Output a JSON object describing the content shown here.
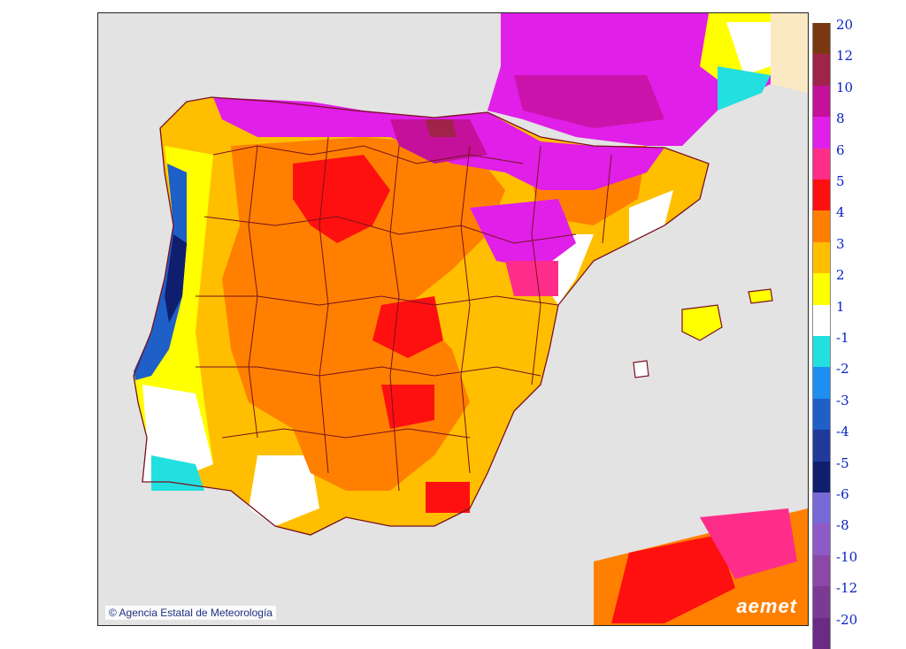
{
  "copyright": "© Agencia Estatal de Meteorología",
  "logo": "aemet",
  "legend": {
    "positive": [
      {
        "label": "20",
        "color": "#7a3810"
      },
      {
        "label": "12",
        "color": "#a0234a"
      },
      {
        "label": "10",
        "color": "#c4109a"
      },
      {
        "label": "8",
        "color": "#e01fe8"
      },
      {
        "label": "6",
        "color": "#ff2d8a"
      },
      {
        "label": "5",
        "color": "#ff1010"
      },
      {
        "label": "4",
        "color": "#ff8000"
      },
      {
        "label": "3",
        "color": "#ffbf00"
      },
      {
        "label": "2",
        "color": "#ffff00"
      },
      {
        "label": "1",
        "color": "#ffffff"
      }
    ],
    "negative": [
      {
        "label": "-1",
        "color": "#22e0e0"
      },
      {
        "label": "-2",
        "color": "#1e8ef0"
      },
      {
        "label": "-3",
        "color": "#1f5fc8"
      },
      {
        "label": "-4",
        "color": "#1f3a9a"
      },
      {
        "label": "-5",
        "color": "#101e6e"
      },
      {
        "label": "-6",
        "color": "#7868d8"
      },
      {
        "label": "-8",
        "color": "#8e5ac8"
      },
      {
        "label": "-10",
        "color": "#8b48a8"
      },
      {
        "label": "-12",
        "color": "#7b3a94"
      },
      {
        "label": "-20",
        "color": "#6a2a86"
      }
    ]
  }
}
